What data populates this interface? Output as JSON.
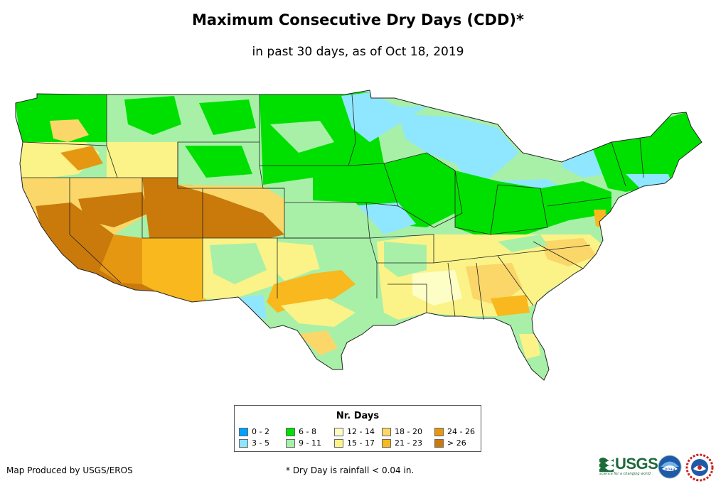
{
  "title": "Maximum Consecutive Dry Days (CDD)*",
  "subtitle": "in past 30 days, as of Oct 18, 2019",
  "legend": {
    "title": "Nr. Days",
    "items": [
      {
        "label": "0 - 2",
        "color": "#00a2ff"
      },
      {
        "label": "3 - 5",
        "color": "#8fe6ff"
      },
      {
        "label": "6 - 8",
        "color": "#00e000"
      },
      {
        "label": "9 - 11",
        "color": "#a8f0a8"
      },
      {
        "label": "12 - 14",
        "color": "#fdfdc6"
      },
      {
        "label": "15 - 17",
        "color": "#fbf387"
      },
      {
        "label": "18 - 20",
        "color": "#fad768"
      },
      {
        "label": "21 - 23",
        "color": "#f8b81e"
      },
      {
        "label": "24 - 26",
        "color": "#e69712"
      },
      {
        "label": "> 26",
        "color": "#c97a0a"
      }
    ]
  },
  "credit": "Map Produced by USGS/EROS",
  "footnote": "* Dry Day is rainfall < 0.04 in.",
  "logos": {
    "usgs_text": "USGS",
    "usgs_tagline": "science for a changing world",
    "noaa_text": "noaa"
  }
}
